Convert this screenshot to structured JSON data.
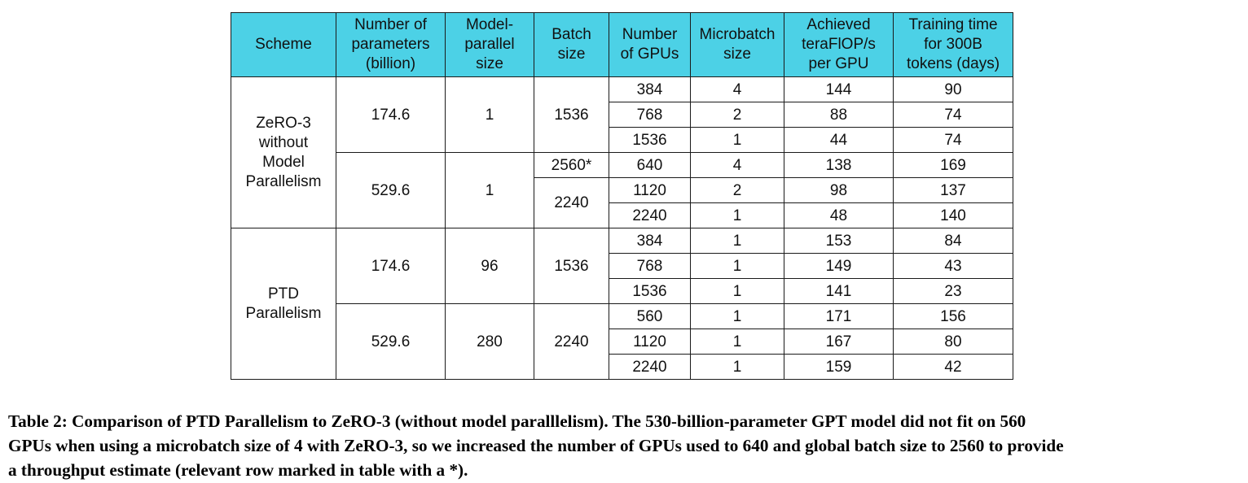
{
  "table": {
    "headers": [
      "Scheme",
      "Number of parameters (billion)",
      "Model-parallel size",
      "Batch size",
      "Number of GPUs",
      "Microbatch size",
      "Achieved teraFlOP/s per GPU",
      "Training time for 300B tokens (days)"
    ],
    "header_lines": [
      [
        "Scheme"
      ],
      [
        "Number of",
        "parameters",
        "(billion)"
      ],
      [
        "Model-",
        "parallel",
        "size"
      ],
      [
        "Batch",
        "size"
      ],
      [
        "Number",
        "of GPUs"
      ],
      [
        "Microbatch",
        "size"
      ],
      [
        "Achieved",
        "teraFlOP/s",
        "per GPU"
      ],
      [
        "Training time",
        "for 300B",
        "tokens (days)"
      ]
    ],
    "groups": [
      {
        "scheme_lines": [
          "ZeRO-3",
          "without",
          "Model",
          "Parallelism"
        ],
        "blocks": [
          {
            "params": "174.6",
            "mp_size": "1",
            "batches": [
              {
                "batch": "1536",
                "rows": [
                  {
                    "gpus": "384",
                    "microbatch": "4",
                    "tflops": "144",
                    "days": "90"
                  },
                  {
                    "gpus": "768",
                    "microbatch": "2",
                    "tflops": "88",
                    "days": "74"
                  },
                  {
                    "gpus": "1536",
                    "microbatch": "1",
                    "tflops": "44",
                    "days": "74"
                  }
                ]
              }
            ]
          },
          {
            "params": "529.6",
            "mp_size": "1",
            "batches": [
              {
                "batch": "2560*",
                "rows": [
                  {
                    "gpus": "640",
                    "microbatch": "4",
                    "tflops": "138",
                    "days": "169"
                  }
                ]
              },
              {
                "batch": "2240",
                "rows": [
                  {
                    "gpus": "1120",
                    "microbatch": "2",
                    "tflops": "98",
                    "days": "137"
                  },
                  {
                    "gpus": "2240",
                    "microbatch": "1",
                    "tflops": "48",
                    "days": "140"
                  }
                ]
              }
            ]
          }
        ]
      },
      {
        "scheme_lines": [
          "PTD",
          "Parallelism"
        ],
        "blocks": [
          {
            "params": "174.6",
            "mp_size": "96",
            "batches": [
              {
                "batch": "1536",
                "rows": [
                  {
                    "gpus": "384",
                    "microbatch": "1",
                    "tflops": "153",
                    "days": "84"
                  },
                  {
                    "gpus": "768",
                    "microbatch": "1",
                    "tflops": "149",
                    "days": "43"
                  },
                  {
                    "gpus": "1536",
                    "microbatch": "1",
                    "tflops": "141",
                    "days": "23"
                  }
                ]
              }
            ]
          },
          {
            "params": "529.6",
            "mp_size": "280",
            "batches": [
              {
                "batch": "2240",
                "rows": [
                  {
                    "gpus": "560",
                    "microbatch": "1",
                    "tflops": "171",
                    "days": "156"
                  },
                  {
                    "gpus": "1120",
                    "microbatch": "1",
                    "tflops": "167",
                    "days": "80"
                  },
                  {
                    "gpus": "2240",
                    "microbatch": "1",
                    "tflops": "159",
                    "days": "42"
                  }
                ]
              }
            ]
          }
        ]
      }
    ]
  },
  "caption": {
    "lines": [
      "Table 2: Comparison of PTD Parallelism to ZeRO-3 (without model paralllelism). The 530-billion-parameter GPT model did not fit on 560",
      "GPUs when using a microbatch size of 4 with ZeRO-3, so we increased the number of GPUs used to 640 and global batch size to 2560 to provide",
      "a throughput estimate (relevant row marked in table with a *)."
    ]
  },
  "colors": {
    "header_bg": "#4cd1e6",
    "border": "#1a1a1a",
    "text": "#111111"
  }
}
